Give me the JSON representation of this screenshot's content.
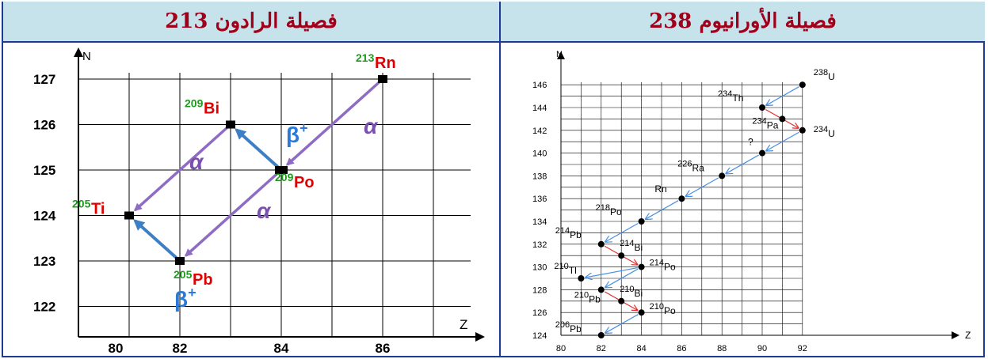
{
  "left_panel": {
    "title": "فصيلة الرادون 213",
    "axis_x_label": "Z",
    "axis_y_label": "N",
    "x_ticks": [
      "80",
      "82",
      "84",
      "86"
    ],
    "y_ticks": [
      "127",
      "126",
      "125",
      "124",
      "123",
      "122"
    ],
    "nuclides": [
      {
        "mass": "213",
        "symbol": "Rn",
        "z": 86,
        "n": 127
      },
      {
        "mass": "209",
        "symbol": "Bi",
        "z": 83,
        "n": 126
      },
      {
        "mass": "209",
        "symbol": "Po",
        "z": 84,
        "n": 125
      },
      {
        "mass": "205",
        "symbol": "Ti",
        "z": 81,
        "n": 124
      },
      {
        "mass": "205",
        "symbol": "Pb",
        "z": 82,
        "n": 123
      }
    ],
    "decay_labels": [
      {
        "text": "α",
        "color": "#7b4fb0"
      },
      {
        "text": "α",
        "color": "#7b4fb0"
      },
      {
        "text": "α",
        "color": "#7b4fb0"
      },
      {
        "text": "β+",
        "color": "#2b7bd6"
      },
      {
        "text": "β+",
        "color": "#2b7bd6"
      }
    ],
    "colors": {
      "mass": "#1e9a1e",
      "symbol": "#e00000",
      "alpha": "#8e6cc4",
      "beta": "#3d7fc4"
    }
  },
  "right_panel": {
    "title": "فصيلة الأورانيوم  238",
    "axis_x_label": "Z",
    "axis_y_label": "N",
    "x_ticks": [
      "80",
      "82",
      "84",
      "86",
      "88",
      "90",
      "92"
    ],
    "y_ticks": [
      "124",
      "126",
      "128",
      "130",
      "132",
      "134",
      "136",
      "138",
      "140",
      "142",
      "144",
      "146"
    ],
    "nuclides": [
      {
        "mass": "238",
        "symbol": "U",
        "z": 92,
        "n": 146
      },
      {
        "mass": "234",
        "symbol": "Th",
        "z": 90,
        "n": 144
      },
      {
        "mass": "234",
        "symbol": "Pa",
        "z": 91,
        "n": 143
      },
      {
        "mass": "234",
        "symbol": "U",
        "z": 92,
        "n": 142
      },
      {
        "mass": "",
        "symbol": "?",
        "z": 90,
        "n": 140
      },
      {
        "mass": "226",
        "symbol": "Ra",
        "z": 88,
        "n": 138
      },
      {
        "mass": "",
        "symbol": "Rn",
        "z": 86,
        "n": 136
      },
      {
        "mass": "218",
        "symbol": "Po",
        "z": 84,
        "n": 134
      },
      {
        "mass": "214",
        "symbol": "Pb",
        "z": 82,
        "n": 132
      },
      {
        "mass": "214",
        "symbol": "Bi",
        "z": 83,
        "n": 131
      },
      {
        "mass": "214",
        "symbol": "Po",
        "z": 84,
        "n": 130
      },
      {
        "mass": "210",
        "symbol": "Tl",
        "z": 81,
        "n": 129
      },
      {
        "mass": "210",
        "symbol": "Pb",
        "z": 82,
        "n": 128
      },
      {
        "mass": "210",
        "symbol": "Bi",
        "z": 83,
        "n": 127
      },
      {
        "mass": "210",
        "symbol": "Po",
        "z": 84,
        "n": 126
      },
      {
        "mass": "206",
        "symbol": "Pb",
        "z": 82,
        "n": 124
      }
    ],
    "colors": {
      "alpha": "#4a90e2",
      "beta": "#e03030",
      "text": "#000000"
    }
  }
}
